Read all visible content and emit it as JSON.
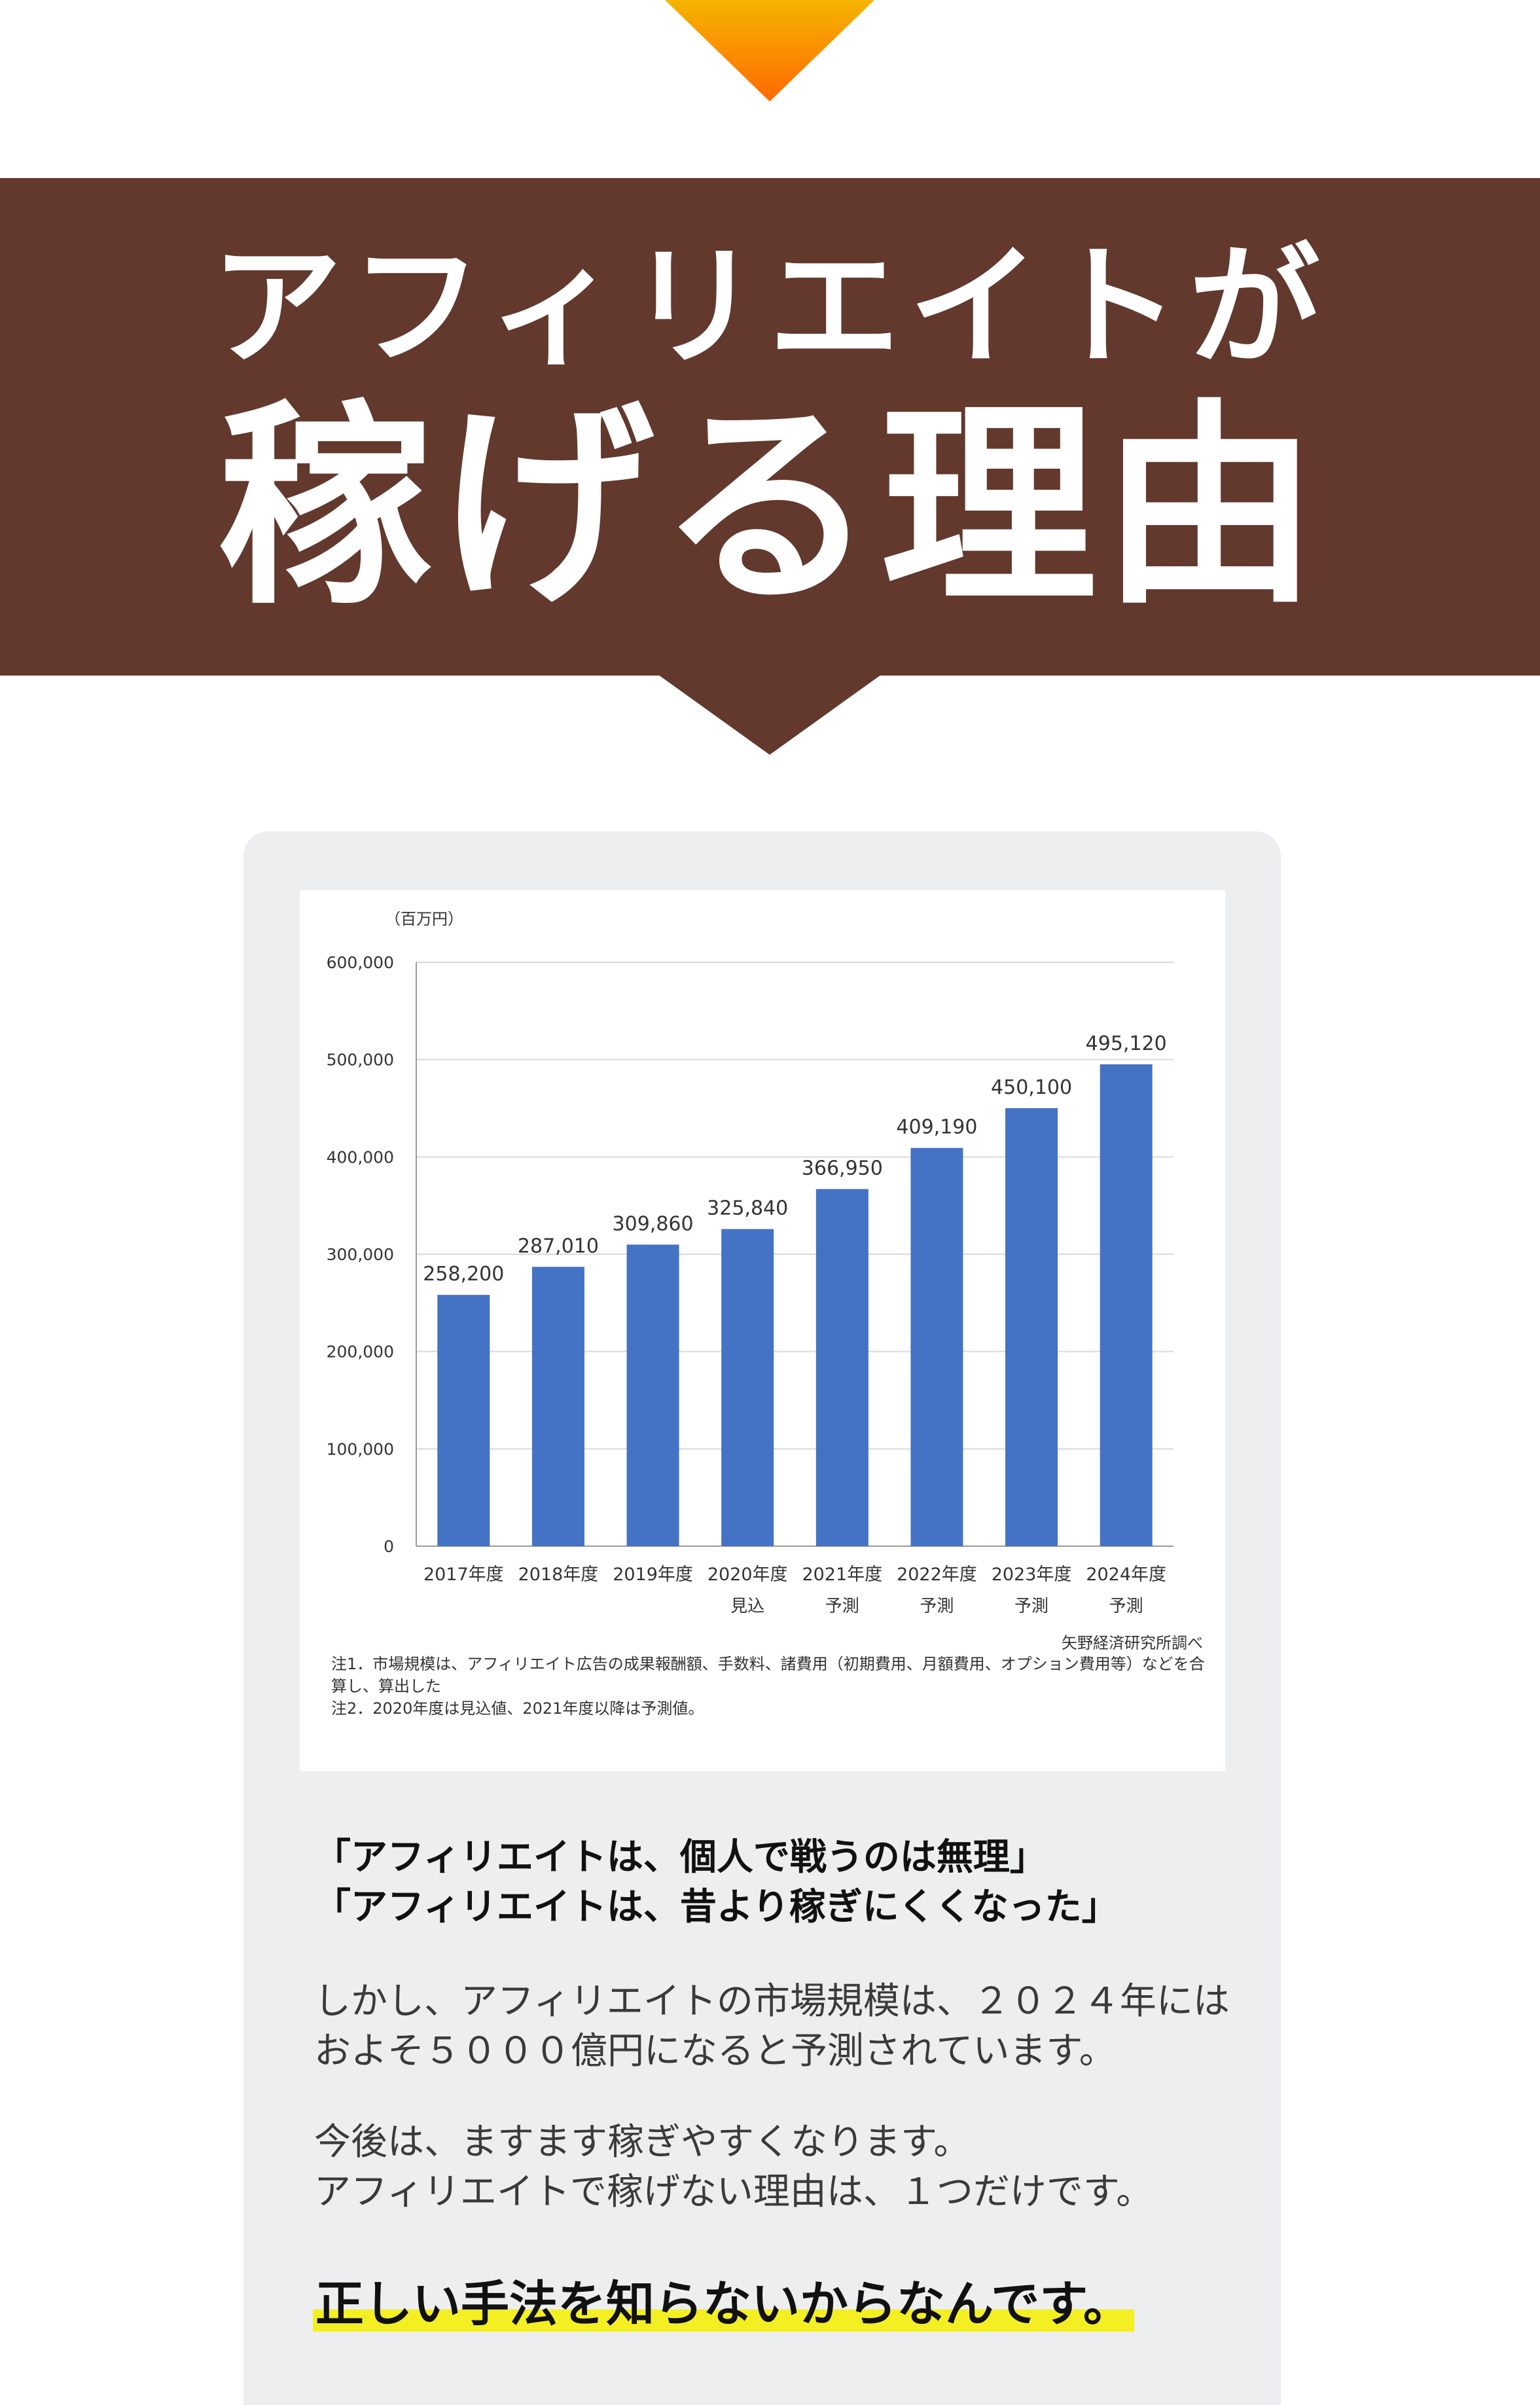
{
  "colors": {
    "banner_bg": "#63382d",
    "bar_color": "#4472c4",
    "card_bg": "#eceef0",
    "arrow_gradient_top": "#f5b400",
    "arrow_gradient_bottom": "#ff6a00",
    "highlight": "#f4ef23"
  },
  "header": {
    "title_line1": "アフィリエイトが",
    "title_line2": "稼げる理由"
  },
  "chart_data": {
    "type": "bar",
    "unit_label": "（百万円）",
    "categories": [
      "2017年度",
      "2018年度",
      "2019年度",
      "2020年度",
      "2021年度",
      "2022年度",
      "2023年度",
      "2024年度"
    ],
    "sublabels": [
      "",
      "",
      "",
      "見込",
      "予測",
      "予測",
      "予測",
      "予測"
    ],
    "values": [
      258200,
      287010,
      309860,
      325840,
      366950,
      409190,
      450100,
      495120
    ],
    "value_labels": [
      "258,200",
      "287,010",
      "309,860",
      "325,840",
      "366,950",
      "409,190",
      "450,100",
      "495,120"
    ],
    "yticks": [
      "0",
      "100,000",
      "200,000",
      "300,000",
      "400,000",
      "500,000",
      "600,000"
    ],
    "ylim": [
      0,
      600000
    ],
    "grid": true,
    "source": "矢野経済研究所調べ",
    "notes": [
      "注1．市場規模は、アフィリエイト広告の成果報酬額、手数料、諸費用（初期費用、月額費用、オプション費用等）などを合算し、算出した",
      "注2．2020年度は見込値、2021年度以降は予測値。"
    ]
  },
  "content": {
    "quote1": "「アフィリエイトは、個人で戦うのは無理」",
    "quote2": "「アフィリエイトは、昔より稼ぎにくくなった」",
    "para1_line1": "しかし、アフィリエイトの市場規模は、２０２４年には",
    "para1_line2": "およそ５０００億円になると予測されています。",
    "para2_line1": "今後は、ますます稼ぎやすくなります。",
    "para2_line2": "アフィリエイトで稼げない理由は、１つだけです。",
    "conclusion": "正しい手法を知らないからなんです。"
  }
}
